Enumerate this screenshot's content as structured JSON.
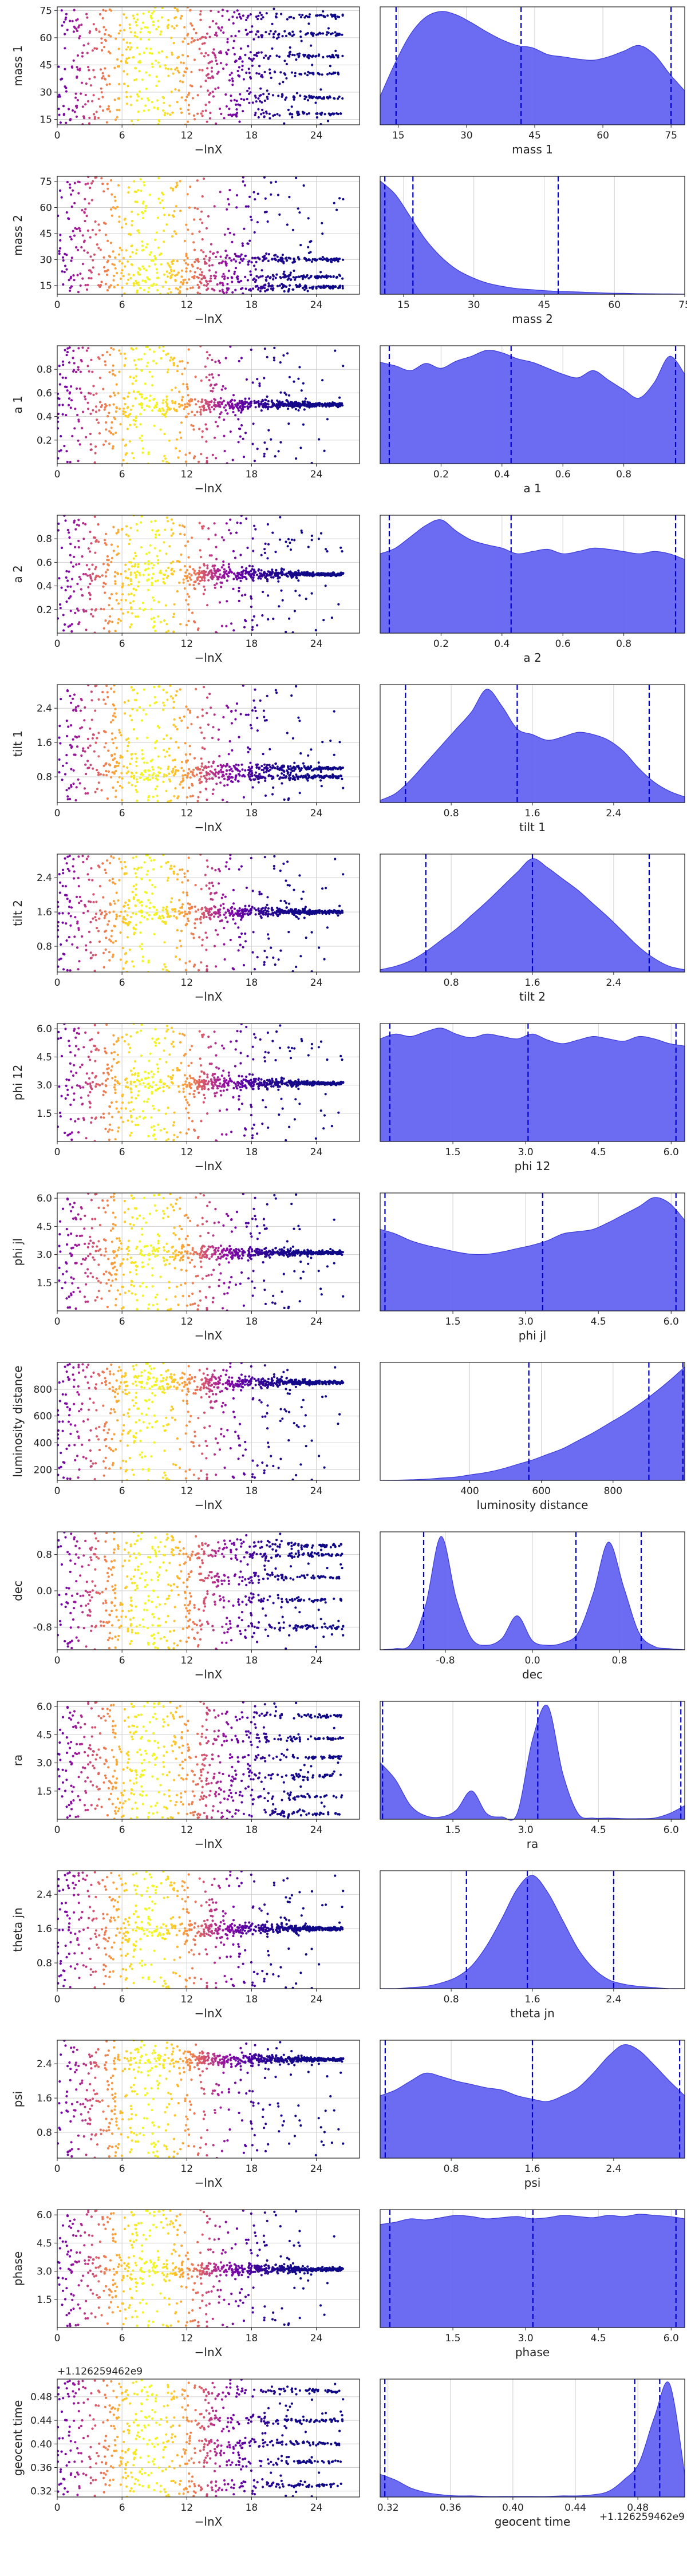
{
  "chart_data": [
    {
      "type": "scatter",
      "name_param": "mass 1",
      "xlabel": "−lnX",
      "ylabel": "mass 1",
      "xlim": [
        0,
        28
      ],
      "ylim": [
        12,
        77
      ],
      "xticks": [
        "0",
        "6",
        "12",
        "18",
        "24"
      ],
      "yticks": [
        "15",
        "30",
        "45",
        "60",
        "75"
      ],
      "ytick_values": [
        15,
        30,
        45,
        60,
        75
      ],
      "band_centers": [
        18,
        27,
        40,
        50,
        62,
        72
      ],
      "hist": {
        "xlabel": "mass 1",
        "xlim": [
          11,
          78
        ],
        "xticks": [
          "15",
          "30",
          "45",
          "60",
          "75"
        ],
        "xtick_values": [
          15,
          30,
          45,
          60,
          75
        ],
        "quantiles": [
          14.5,
          42,
          75
        ],
        "density": [
          0.25,
          0.55,
          0.8,
          0.95,
          1.0,
          0.97,
          0.9,
          0.82,
          0.75,
          0.7,
          0.68,
          0.62,
          0.6,
          0.58,
          0.57,
          0.6,
          0.65,
          0.7,
          0.62,
          0.45,
          0.3
        ]
      }
    },
    {
      "type": "scatter",
      "name_param": "mass 2",
      "xlabel": "−lnX",
      "ylabel": "mass 2",
      "xlim": [
        0,
        28
      ],
      "ylim": [
        10,
        78
      ],
      "xticks": [
        "0",
        "6",
        "12",
        "18",
        "24"
      ],
      "yticks": [
        "15",
        "30",
        "45",
        "60",
        "75"
      ],
      "ytick_values": [
        15,
        30,
        45,
        60,
        75
      ],
      "band_centers": [
        14,
        20,
        30
      ],
      "hist": {
        "xlabel": "mass 2",
        "xlim": [
          10,
          75
        ],
        "xticks": [
          "15",
          "30",
          "45",
          "60",
          "75"
        ],
        "xtick_values": [
          15,
          30,
          45,
          60,
          75
        ],
        "quantiles": [
          11,
          17,
          48
        ],
        "density": [
          1.0,
          0.88,
          0.68,
          0.48,
          0.33,
          0.22,
          0.15,
          0.1,
          0.07,
          0.05,
          0.04,
          0.03,
          0.025,
          0.02,
          0.015,
          0.01,
          0.008,
          0.005,
          0.004,
          0.003,
          0.002
        ]
      }
    },
    {
      "type": "scatter",
      "name_param": "a 1",
      "xlabel": "−lnX",
      "ylabel": "a 1",
      "xlim": [
        0,
        28
      ],
      "ylim": [
        0,
        1
      ],
      "xticks": [
        "0",
        "6",
        "12",
        "18",
        "24"
      ],
      "yticks": [
        "0.2",
        "0.4",
        "0.6",
        "0.8"
      ],
      "ytick_values": [
        0.2,
        0.4,
        0.6,
        0.8
      ],
      "band_centers": [
        0.5
      ],
      "hist": {
        "xlabel": "a 1",
        "xlim": [
          0,
          1
        ],
        "xticks": [
          "0.2",
          "0.4",
          "0.6",
          "0.8"
        ],
        "xtick_values": [
          0.2,
          0.4,
          0.6,
          0.8
        ],
        "quantiles": [
          0.03,
          0.43,
          0.97
        ],
        "density": [
          0.85,
          0.82,
          0.78,
          0.84,
          0.8,
          0.86,
          0.9,
          0.95,
          0.93,
          0.88,
          0.85,
          0.8,
          0.75,
          0.72,
          0.78,
          0.7,
          0.62,
          0.55,
          0.68,
          0.9,
          0.75
        ]
      }
    },
    {
      "type": "scatter",
      "name_param": "a 2",
      "xlabel": "−lnX",
      "ylabel": "a 2",
      "xlim": [
        0,
        28
      ],
      "ylim": [
        0,
        1
      ],
      "xticks": [
        "0",
        "6",
        "12",
        "18",
        "24"
      ],
      "yticks": [
        "0.2",
        "0.4",
        "0.6",
        "0.8"
      ],
      "ytick_values": [
        0.2,
        0.4,
        0.6,
        0.8
      ],
      "band_centers": [
        0.5
      ],
      "hist": {
        "xlabel": "a 2",
        "xlim": [
          0,
          1
        ],
        "xticks": [
          "0.2",
          "0.4",
          "0.6",
          "0.8"
        ],
        "xtick_values": [
          0.2,
          0.4,
          0.6,
          0.8
        ],
        "quantiles": [
          0.03,
          0.43,
          0.97
        ],
        "density": [
          0.7,
          0.75,
          0.85,
          0.95,
          1.0,
          0.9,
          0.82,
          0.78,
          0.75,
          0.7,
          0.72,
          0.74,
          0.7,
          0.72,
          0.75,
          0.74,
          0.72,
          0.7,
          0.72,
          0.7,
          0.65
        ]
      }
    },
    {
      "type": "scatter",
      "name_param": "tilt 1",
      "xlabel": "−lnX",
      "ylabel": "tilt 1",
      "xlim": [
        0,
        28
      ],
      "ylim": [
        0.2,
        2.95
      ],
      "xticks": [
        "0",
        "6",
        "12",
        "18",
        "24"
      ],
      "yticks": [
        "0.8",
        "1.6",
        "2.4"
      ],
      "ytick_values": [
        0.8,
        1.6,
        2.4
      ],
      "band_centers": [
        0.8,
        1.0
      ],
      "hist": {
        "xlabel": "tilt 1",
        "xlim": [
          0.1,
          3.1
        ],
        "xticks": [
          "0.8",
          "1.6",
          "2.4"
        ],
        "xtick_values": [
          0.8,
          1.6,
          2.4
        ],
        "quantiles": [
          0.35,
          1.45,
          2.75
        ],
        "density": [
          0.02,
          0.08,
          0.2,
          0.35,
          0.5,
          0.65,
          0.8,
          1.0,
          0.85,
          0.65,
          0.6,
          0.55,
          0.58,
          0.62,
          0.6,
          0.55,
          0.45,
          0.3,
          0.18,
          0.1,
          0.05
        ]
      }
    },
    {
      "type": "scatter",
      "name_param": "tilt 2",
      "xlabel": "−lnX",
      "ylabel": "tilt 2",
      "xlim": [
        0,
        28
      ],
      "ylim": [
        0.2,
        2.95
      ],
      "xticks": [
        "0",
        "6",
        "12",
        "18",
        "24"
      ],
      "yticks": [
        "0.8",
        "1.6",
        "2.4"
      ],
      "ytick_values": [
        0.8,
        1.6,
        2.4
      ],
      "band_centers": [
        1.6
      ],
      "hist": {
        "xlabel": "tilt 2",
        "xlim": [
          0.1,
          3.1
        ],
        "xticks": [
          "0.8",
          "1.6",
          "2.4"
        ],
        "xtick_values": [
          0.8,
          1.6,
          2.4
        ],
        "quantiles": [
          0.55,
          1.6,
          2.75
        ],
        "density": [
          0.02,
          0.05,
          0.1,
          0.18,
          0.28,
          0.38,
          0.5,
          0.62,
          0.75,
          0.88,
          1.0,
          0.92,
          0.82,
          0.72,
          0.6,
          0.48,
          0.35,
          0.22,
          0.12,
          0.05,
          0.02
        ]
      }
    },
    {
      "type": "scatter",
      "name_param": "phi 12",
      "xlabel": "−lnX",
      "ylabel": "phi 12",
      "xlim": [
        0,
        28
      ],
      "ylim": [
        0,
        6.28
      ],
      "xticks": [
        "0",
        "6",
        "12",
        "18",
        "24"
      ],
      "yticks": [
        "1.5",
        "3.0",
        "4.5",
        "6.0"
      ],
      "ytick_values": [
        1.5,
        3.0,
        4.5,
        6.0
      ],
      "band_centers": [
        3.1
      ],
      "hist": {
        "xlabel": "phi 12",
        "xlim": [
          0,
          6.28
        ],
        "xticks": [
          "1.5",
          "3.0",
          "4.5",
          "6.0"
        ],
        "xtick_values": [
          1.5,
          3.0,
          4.5,
          6.0
        ],
        "quantiles": [
          0.2,
          3.05,
          6.1
        ],
        "density": [
          0.86,
          0.9,
          0.88,
          0.92,
          0.95,
          0.9,
          0.87,
          0.9,
          0.88,
          0.86,
          0.9,
          0.85,
          0.82,
          0.85,
          0.88,
          0.86,
          0.84,
          0.88,
          0.86,
          0.82,
          0.8
        ]
      }
    },
    {
      "type": "scatter",
      "name_param": "phi jl",
      "xlabel": "−lnX",
      "ylabel": "phi jl",
      "xlim": [
        0,
        28
      ],
      "ylim": [
        0,
        6.28
      ],
      "xticks": [
        "0",
        "6",
        "12",
        "18",
        "24"
      ],
      "yticks": [
        "1.5",
        "3.0",
        "4.5",
        "6.0"
      ],
      "ytick_values": [
        1.5,
        3.0,
        4.5,
        6.0
      ],
      "band_centers": [
        3.1
      ],
      "hist": {
        "xlabel": "phi jl",
        "xlim": [
          0,
          6.28
        ],
        "xticks": [
          "1.5",
          "3.0",
          "4.5",
          "6.0"
        ],
        "xtick_values": [
          1.5,
          3.0,
          4.5,
          6.0
        ],
        "quantiles": [
          0.1,
          3.35,
          6.1
        ],
        "density": [
          0.72,
          0.68,
          0.62,
          0.58,
          0.55,
          0.52,
          0.5,
          0.5,
          0.52,
          0.55,
          0.58,
          0.62,
          0.68,
          0.7,
          0.72,
          0.78,
          0.85,
          0.92,
          1.0,
          0.95,
          0.8
        ]
      }
    },
    {
      "type": "scatter",
      "name_param": "luminosity distance",
      "xlabel": "−lnX",
      "ylabel": "luminosity distance",
      "xlim": [
        0,
        28
      ],
      "ylim": [
        120,
        1000
      ],
      "xticks": [
        "0",
        "6",
        "12",
        "18",
        "24"
      ],
      "yticks": [
        "200",
        "400",
        "600",
        "800"
      ],
      "ytick_values": [
        200,
        400,
        600,
        800
      ],
      "band_centers": [
        850
      ],
      "hist": {
        "xlabel": "luminosity distance",
        "xlim": [
          150,
          1000
        ],
        "xticks": [
          "400",
          "600",
          "800"
        ],
        "xtick_values": [
          400,
          600,
          800
        ],
        "quantiles": [
          565,
          900,
          995
        ],
        "density": [
          0.0,
          0.002,
          0.005,
          0.01,
          0.02,
          0.03,
          0.05,
          0.07,
          0.1,
          0.14,
          0.18,
          0.23,
          0.28,
          0.35,
          0.42,
          0.5,
          0.58,
          0.67,
          0.77,
          0.88,
          1.0
        ]
      }
    },
    {
      "type": "scatter",
      "name_param": "dec",
      "xlabel": "−lnX",
      "ylabel": "dec",
      "xlim": [
        0,
        28
      ],
      "ylim": [
        -1.3,
        1.3
      ],
      "xticks": [
        "0",
        "6",
        "12",
        "18",
        "24"
      ],
      "yticks": [
        "-0.8",
        "0.0",
        "0.8"
      ],
      "ytick_values": [
        -0.8,
        0,
        0.8
      ],
      "band_centers": [
        -0.8,
        0.8,
        0.3,
        -0.2,
        1.0
      ],
      "hist": {
        "xlabel": "dec",
        "xlim": [
          -1.4,
          1.4
        ],
        "xticks": [
          "-0.8",
          "0.0",
          "0.8"
        ],
        "xtick_values": [
          -0.8,
          0,
          0.8
        ],
        "quantiles": [
          -1.0,
          0.4,
          1.0
        ],
        "density": [
          0.0,
          0.01,
          0.05,
          0.4,
          1.0,
          0.45,
          0.1,
          0.04,
          0.1,
          0.3,
          0.08,
          0.04,
          0.06,
          0.15,
          0.5,
          0.95,
          0.55,
          0.15,
          0.03,
          0.01,
          0.0
        ]
      }
    },
    {
      "type": "scatter",
      "name_param": "ra",
      "xlabel": "−lnX",
      "ylabel": "ra",
      "xlim": [
        0,
        28
      ],
      "ylim": [
        0,
        6.28
      ],
      "xticks": [
        "0",
        "6",
        "12",
        "18",
        "24"
      ],
      "yticks": [
        "1.5",
        "3.0",
        "4.5",
        "6.0"
      ],
      "ytick_values": [
        1.5,
        3.0,
        4.5,
        6.0
      ],
      "band_centers": [
        3.3,
        2.3,
        1.2,
        4.3,
        0.3,
        5.5
      ],
      "hist": {
        "xlabel": "ra",
        "xlim": [
          0,
          6.28
        ],
        "xticks": [
          "1.5",
          "3.0",
          "4.5",
          "6.0"
        ],
        "xtick_values": [
          1.5,
          3.0,
          4.5,
          6.0
        ],
        "quantiles": [
          0.05,
          3.25,
          6.2
        ],
        "density": [
          0.5,
          0.35,
          0.12,
          0.03,
          0.02,
          0.08,
          0.25,
          0.05,
          0.02,
          0.05,
          0.7,
          1.0,
          0.4,
          0.05,
          0.01,
          0.01,
          0.005,
          0.005,
          0.01,
          0.05,
          0.12
        ]
      }
    },
    {
      "type": "scatter",
      "name_param": "theta jn",
      "xlabel": "−lnX",
      "ylabel": "theta jn",
      "xlim": [
        0,
        28
      ],
      "ylim": [
        0.2,
        2.95
      ],
      "xticks": [
        "0",
        "6",
        "12",
        "18",
        "24"
      ],
      "yticks": [
        "0.8",
        "1.6",
        "2.4"
      ],
      "ytick_values": [
        0.8,
        1.6,
        2.4
      ],
      "band_centers": [
        1.6
      ],
      "hist": {
        "xlabel": "theta jn",
        "xlim": [
          0.1,
          3.1
        ],
        "xticks": [
          "0.8",
          "1.6",
          "2.4"
        ],
        "xtick_values": [
          0.8,
          1.6,
          2.4
        ],
        "quantiles": [
          0.95,
          1.55,
          2.4
        ],
        "density": [
          0.0,
          0.0,
          0.01,
          0.02,
          0.05,
          0.1,
          0.2,
          0.38,
          0.62,
          0.88,
          1.0,
          0.85,
          0.6,
          0.35,
          0.18,
          0.08,
          0.04,
          0.02,
          0.01,
          0.0,
          0.0
        ]
      }
    },
    {
      "type": "scatter",
      "name_param": "psi",
      "xlabel": "−lnX",
      "ylabel": "psi",
      "xlim": [
        0,
        28
      ],
      "ylim": [
        0.2,
        2.95
      ],
      "xticks": [
        "0",
        "6",
        "12",
        "18",
        "24"
      ],
      "yticks": [
        "0.8",
        "1.6",
        "2.4"
      ],
      "ytick_values": [
        0.8,
        1.6,
        2.4
      ],
      "band_centers": [
        2.5
      ],
      "hist": {
        "xlabel": "psi",
        "xlim": [
          0.1,
          3.1
        ],
        "xticks": [
          "0.8",
          "1.6",
          "2.4"
        ],
        "xtick_values": [
          0.8,
          1.6,
          2.4
        ],
        "quantiles": [
          0.15,
          1.6,
          3.05
        ],
        "density": [
          0.55,
          0.6,
          0.68,
          0.75,
          0.72,
          0.68,
          0.65,
          0.62,
          0.6,
          0.55,
          0.52,
          0.5,
          0.55,
          0.62,
          0.75,
          0.9,
          1.0,
          0.95,
          0.82,
          0.68,
          0.55
        ]
      }
    },
    {
      "type": "scatter",
      "name_param": "phase",
      "xlabel": "−lnX",
      "ylabel": "phase",
      "xlim": [
        0,
        28
      ],
      "ylim": [
        0,
        6.28
      ],
      "xticks": [
        "0",
        "6",
        "12",
        "18",
        "24"
      ],
      "yticks": [
        "1.5",
        "3.0",
        "4.5",
        "6.0"
      ],
      "ytick_values": [
        1.5,
        3.0,
        4.5,
        6.0
      ],
      "band_centers": [
        3.1
      ],
      "hist": {
        "xlabel": "phase",
        "xlim": [
          0,
          6.28
        ],
        "xticks": [
          "1.5",
          "3.0",
          "4.5",
          "6.0"
        ],
        "xtick_values": [
          1.5,
          3.0,
          4.5,
          6.0
        ],
        "quantiles": [
          0.2,
          3.15,
          6.1
        ],
        "density": [
          0.9,
          0.92,
          0.95,
          0.94,
          0.96,
          0.98,
          0.97,
          0.95,
          0.96,
          0.97,
          0.95,
          0.96,
          0.98,
          0.97,
          0.96,
          0.98,
          0.97,
          0.99,
          0.98,
          0.97,
          0.95
        ]
      }
    },
    {
      "type": "scatter",
      "name_param": "geocent time",
      "xlabel": "−lnX",
      "ylabel": "geocent time",
      "xlim": [
        0,
        28
      ],
      "ylim": [
        0.31,
        0.51
      ],
      "offset_label": "+1.126259462e9",
      "xticks": [
        "0",
        "6",
        "12",
        "18",
        "24"
      ],
      "yticks": [
        "0.32",
        "0.36",
        "0.40",
        "0.44",
        "0.48"
      ],
      "ytick_values": [
        0.32,
        0.36,
        0.4,
        0.44,
        0.48
      ],
      "band_centers": [
        0.49,
        0.44,
        0.4,
        0.37,
        0.33
      ],
      "hist": {
        "xlabel": "geocent time",
        "xlim": [
          0.315,
          0.51
        ],
        "xticks": [
          "0.32",
          "0.36",
          "0.40",
          "0.44",
          "0.48"
        ],
        "xtick_values": [
          0.32,
          0.36,
          0.4,
          0.44,
          0.48
        ],
        "offset_label": "+1.126259462e9",
        "quantiles": [
          0.318,
          0.478,
          0.494
        ],
        "density": [
          0.2,
          0.15,
          0.08,
          0.04,
          0.02,
          0.01,
          0.01,
          0.005,
          0.005,
          0.005,
          0.005,
          0.005,
          0.01,
          0.01,
          0.02,
          0.05,
          0.15,
          0.3,
          0.7,
          1.0,
          0.2
        ]
      }
    }
  ]
}
